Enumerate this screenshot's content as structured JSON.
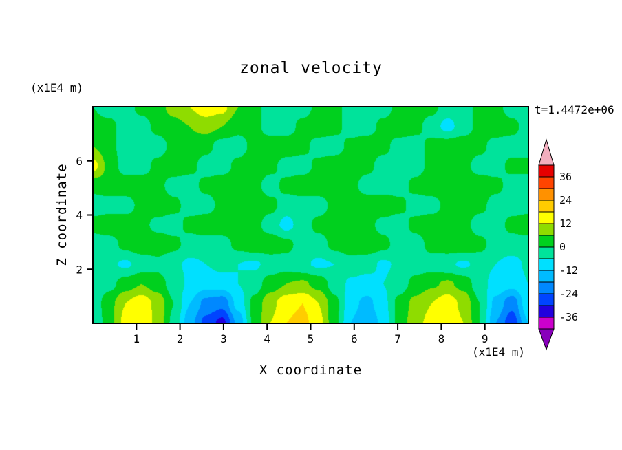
{
  "chart_data": {
    "type": "filled_contour",
    "title": "zonal velocity",
    "xlabel": "X coordinate",
    "ylabel": "Z coordinate",
    "annotations": {
      "time": "t=1.4472e+06",
      "z_axis_units": "(x1E4 m)",
      "x_axis_units": "(x1E4 m)"
    },
    "x_range": [
      0,
      10
    ],
    "z_range": [
      0,
      8
    ],
    "x_ticks": [
      1,
      2,
      3,
      4,
      5,
      6,
      7,
      8,
      9
    ],
    "z_ticks": [
      2,
      4,
      6
    ],
    "contour_levels": [
      -42,
      -36,
      -30,
      -24,
      -18,
      -12,
      -6,
      0,
      6,
      12,
      18,
      24,
      30,
      36,
      42
    ],
    "colorbar_labels": [
      36,
      24,
      12,
      0,
      -12,
      -24,
      -36
    ],
    "palette_ascending": [
      "#8800bb",
      "#cc00cc",
      "#2200dd",
      "#0044ff",
      "#0088ff",
      "#00bbff",
      "#00e0ff",
      "#00e39b",
      "#00d01e",
      "#8fdc00",
      "#ffff00",
      "#ffcc00",
      "#ff9100",
      "#ff4400",
      "#e60000",
      "#f2aebe"
    ],
    "grid_shape": {
      "nx": 28,
      "nz": 12
    },
    "values_rows_bottom_to_top": [
      [
        -6,
        4,
        14,
        18,
        10,
        -2,
        -16,
        -26,
        -32,
        -16,
        2,
        12,
        18,
        20,
        14,
        2,
        -12,
        -18,
        -10,
        2,
        10,
        14,
        18,
        12,
        0,
        -18,
        -28,
        -12
      ],
      [
        -4,
        4,
        12,
        16,
        10,
        0,
        -12,
        -20,
        -22,
        -10,
        2,
        10,
        16,
        18,
        12,
        2,
        -10,
        -14,
        -8,
        2,
        8,
        12,
        16,
        10,
        0,
        -14,
        -22,
        -8
      ],
      [
        -5,
        -2,
        3,
        6,
        3,
        -3,
        -7,
        -10,
        -9,
        -6,
        -3,
        3,
        6,
        7,
        4,
        -3,
        -7,
        -8,
        -6,
        -3,
        2,
        5,
        7,
        4,
        -4,
        -8,
        -10,
        -6
      ],
      [
        -3,
        -5,
        -7,
        -4,
        -2,
        -5,
        -7,
        -6,
        -4,
        -6,
        -7,
        -4,
        -3,
        -5,
        -7,
        -6,
        -3,
        -4,
        -7,
        -5,
        -3,
        -3,
        -5,
        -7,
        -4,
        -6,
        -8,
        -5
      ],
      [
        -3,
        -3,
        2,
        4,
        4,
        2,
        -3,
        -3,
        -3,
        2,
        4,
        4,
        2,
        -3,
        -3,
        2,
        4,
        4,
        2,
        -3,
        -3,
        2,
        4,
        4,
        2,
        -3,
        -3,
        -3
      ],
      [
        2,
        4,
        4,
        2,
        -2,
        -3,
        2,
        4,
        4,
        4,
        2,
        -3,
        -8,
        -3,
        2,
        4,
        4,
        2,
        -2,
        -3,
        2,
        4,
        4,
        2,
        -3,
        -3,
        2,
        4
      ],
      [
        -3,
        -3,
        -3,
        2,
        4,
        2,
        -3,
        -3,
        2,
        4,
        4,
        2,
        -3,
        -3,
        -3,
        2,
        4,
        4,
        4,
        2,
        -3,
        -3,
        2,
        4,
        2,
        -3,
        -3,
        -3
      ],
      [
        2,
        4,
        4,
        4,
        2,
        -3,
        -3,
        2,
        4,
        4,
        2,
        -3,
        2,
        4,
        4,
        4,
        2,
        -3,
        -3,
        -3,
        2,
        4,
        4,
        4,
        4,
        2,
        -3,
        -3
      ],
      [
        14,
        4,
        -3,
        -3,
        2,
        4,
        2,
        -3,
        -3,
        2,
        4,
        2,
        -3,
        -3,
        2,
        4,
        4,
        2,
        -3,
        -3,
        -3,
        2,
        4,
        2,
        -3,
        -3,
        2,
        2
      ],
      [
        6,
        2,
        -3,
        -3,
        -3,
        2,
        4,
        2,
        -3,
        -3,
        2,
        4,
        4,
        2,
        -3,
        -3,
        2,
        4,
        2,
        -3,
        -3,
        2,
        4,
        4,
        2,
        -3,
        -3,
        -3
      ],
      [
        2,
        2,
        -3,
        -3,
        2,
        4,
        6,
        8,
        6,
        2,
        2,
        -3,
        -3,
        2,
        4,
        2,
        -3,
        -3,
        2,
        4,
        2,
        -3,
        -8,
        -3,
        2,
        4,
        2,
        -3
      ],
      [
        0,
        -3,
        -3,
        2,
        4,
        8,
        12,
        16,
        14,
        6,
        2,
        -3,
        -3,
        -3,
        2,
        2,
        -3,
        -3,
        -3,
        2,
        4,
        2,
        -3,
        -3,
        2,
        2,
        -3,
        -3
      ]
    ]
  }
}
